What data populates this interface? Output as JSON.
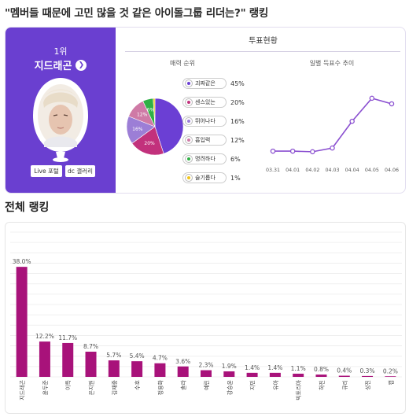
{
  "page": {
    "title": "\"멤버들 때문에 고민 많을 것 같은 아이돌그룹 리더는?\" 랭킹"
  },
  "winner": {
    "rank": "1위",
    "name": "지드래곤",
    "go_icon": "arrow-right-icon",
    "live_button": "Live 포털",
    "gallery_button": "dc 갤러리"
  },
  "vote_status": {
    "title": "투표현황",
    "charm_title": "매력 순위",
    "daily_title": "일별 득표수 추이"
  },
  "colors": {
    "accent": "#6a3fd0",
    "bar": "#a8127a",
    "line": "#8a4fd0"
  },
  "chart_data": [
    {
      "type": "pie",
      "title": "매력 순위",
      "categories": [
        "괴짜같은",
        "센스있는",
        "뛰어나다",
        "흡입력",
        "명려하다",
        "슬기롭다"
      ],
      "values": [
        45,
        20,
        16,
        12,
        6,
        1
      ],
      "display_labels": [
        "45%",
        "20%",
        "16%",
        "12%",
        "6%",
        "1%"
      ],
      "slice_labels": [
        "",
        "20%",
        "16%",
        "12%",
        "6%",
        ""
      ],
      "colors": [
        "#6b3fd4",
        "#c2317c",
        "#9c7ed6",
        "#cf7aa6",
        "#2fb045",
        "#f0c419"
      ]
    },
    {
      "type": "line",
      "title": "일별 득표수 추이",
      "x": [
        "03.31",
        "04.01",
        "04.02",
        "04.03",
        "04.04",
        "04.05",
        "04.06"
      ],
      "values": [
        10,
        10,
        9,
        15,
        58,
        95,
        86
      ],
      "ylim": [
        0,
        110
      ],
      "grid": false
    },
    {
      "type": "bar",
      "title": "전체 랭킹",
      "categories": [
        "지드래곤",
        "윤두준",
        "이특",
        "은지원",
        "김재중",
        "수호",
        "정용화",
        "솔라",
        "예린",
        "강승윤",
        "지민",
        "유아",
        "빅토리아",
        "하진",
        "큐리",
        "성진",
        "캡"
      ],
      "values": [
        38.0,
        12.2,
        11.7,
        8.7,
        5.7,
        5.4,
        4.7,
        3.6,
        2.3,
        1.9,
        1.4,
        1.4,
        1.1,
        0.8,
        0.4,
        0.3,
        0.2
      ],
      "display_labels": [
        "38.0%",
        "12.2%",
        "11.7%",
        "8.7%",
        "5.7%",
        "5.4%",
        "4.7%",
        "3.6%",
        "2.3%",
        "1.9%",
        "1.4%",
        "1.4%",
        "1.1%",
        "0.8%",
        "0.4%",
        "0.3%",
        "0.2%"
      ],
      "ylim": [
        0,
        50
      ],
      "grid": true
    }
  ],
  "ranking": {
    "title": "전체 랭킹"
  }
}
